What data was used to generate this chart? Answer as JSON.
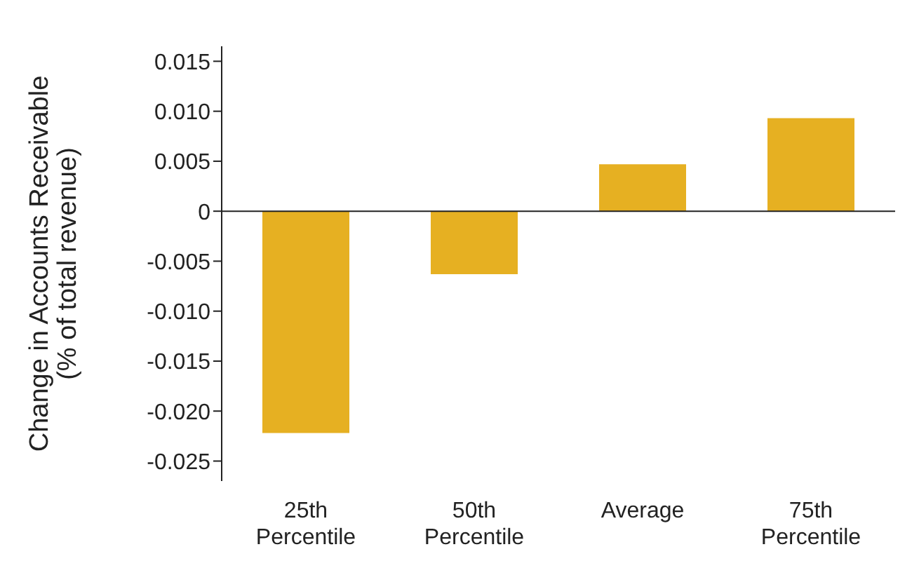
{
  "chart_data": {
    "type": "bar",
    "ylabel": "Change in Accounts Receivable (% of total revenue)",
    "categories": [
      "25th Percentile",
      "50th Percentile",
      "Average",
      "75th Percentile"
    ],
    "values": [
      -0.0222,
      -0.0063,
      0.0047,
      0.0093
    ],
    "color": "#e6b022",
    "ylim": [
      -0.027,
      0.0165
    ],
    "yticks": [
      {
        "value": 0.015,
        "label": "0.015"
      },
      {
        "value": 0.01,
        "label": "0.010"
      },
      {
        "value": 0.005,
        "label": "0.005"
      },
      0,
      {
        "value": -0.005,
        "label": "-0.005"
      },
      {
        "value": -0.01,
        "label": "-0.010"
      },
      {
        "value": -0.015,
        "label": "-0.015"
      },
      {
        "value": -0.02,
        "label": "-0.020"
      },
      {
        "value": -0.025,
        "label": "-0.025"
      }
    ],
    "grid": false,
    "ref_lines": [
      {
        "axis": "y",
        "value": 0,
        "color": "#222222"
      }
    ]
  }
}
